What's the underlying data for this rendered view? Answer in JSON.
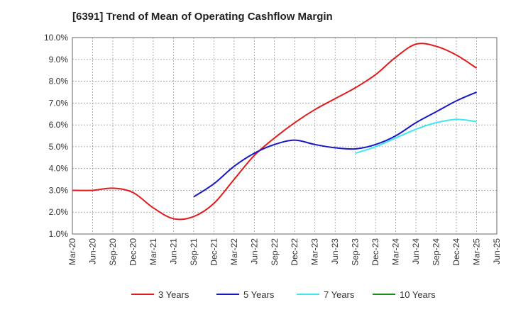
{
  "chart_data": {
    "type": "line",
    "title": "[6391]  Trend of Mean of Operating Cashflow Margin",
    "xlabel": "",
    "ylabel": "",
    "ylim": [
      1.0,
      10.0
    ],
    "y_ticks": [
      "1.0%",
      "2.0%",
      "3.0%",
      "4.0%",
      "5.0%",
      "6.0%",
      "7.0%",
      "8.0%",
      "9.0%",
      "10.0%"
    ],
    "x_ticks": [
      "Mar-20",
      "Jun-20",
      "Sep-20",
      "Dec-20",
      "Mar-21",
      "Jun-21",
      "Sep-21",
      "Dec-21",
      "Mar-22",
      "Jun-22",
      "Sep-22",
      "Dec-22",
      "Mar-23",
      "Jun-23",
      "Sep-23",
      "Dec-23",
      "Mar-24",
      "Jun-24",
      "Sep-24",
      "Dec-24",
      "Mar-25",
      "Jun-25"
    ],
    "grid": true,
    "legend_position": "bottom",
    "series": [
      {
        "name": "3 Years",
        "color": "#e01b1b",
        "values": [
          3.0,
          3.0,
          3.1,
          2.9,
          2.2,
          1.7,
          1.8,
          2.4,
          3.5,
          4.6,
          5.4,
          6.1,
          6.7,
          7.2,
          7.7,
          8.3,
          9.1,
          9.7,
          9.6,
          9.2,
          8.6,
          null
        ]
      },
      {
        "name": "5 Years",
        "color": "#1717c8",
        "values": [
          null,
          null,
          null,
          null,
          null,
          null,
          2.7,
          3.3,
          4.1,
          4.7,
          5.1,
          5.3,
          5.1,
          4.95,
          4.9,
          5.1,
          5.5,
          6.1,
          6.6,
          7.1,
          7.5,
          null
        ]
      },
      {
        "name": "7 Years",
        "color": "#3ee6f0",
        "values": [
          null,
          null,
          null,
          null,
          null,
          null,
          null,
          null,
          null,
          null,
          null,
          null,
          null,
          null,
          4.7,
          5.0,
          5.4,
          5.8,
          6.1,
          6.25,
          6.15,
          null
        ]
      },
      {
        "name": "10 Years",
        "color": "#1e8a1e",
        "values": [
          null,
          null,
          null,
          null,
          null,
          null,
          null,
          null,
          null,
          null,
          null,
          null,
          null,
          null,
          null,
          null,
          null,
          null,
          null,
          null,
          null,
          null
        ]
      }
    ]
  }
}
